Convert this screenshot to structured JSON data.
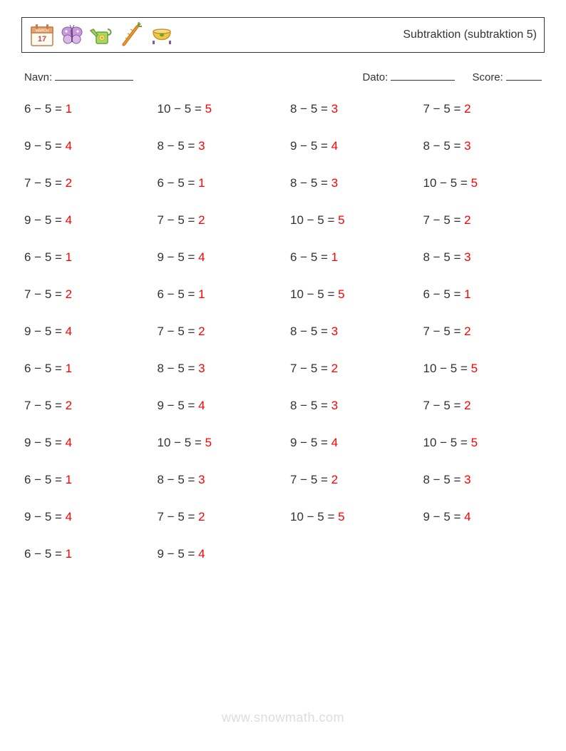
{
  "header": {
    "title": "Subtraktion (subtraktion 5)",
    "icons": [
      "calendar",
      "butterfly",
      "wateringcan",
      "carrot",
      "pot"
    ]
  },
  "meta": {
    "name_label": "Navn:",
    "date_label": "Dato:",
    "score_label": "Score:"
  },
  "colors": {
    "text": "#333333",
    "answer": "#ff0000",
    "border": "#333333",
    "watermark": "#dddddd",
    "background": "#ffffff"
  },
  "layout": {
    "columns": 4,
    "rows": 13,
    "problem_fontsize": 17,
    "title_fontsize": 16,
    "meta_fontsize": 15
  },
  "problems": [
    [
      {
        "a": 6,
        "b": 5,
        "ans": 1
      },
      {
        "a": 10,
        "b": 5,
        "ans": 5
      },
      {
        "a": 8,
        "b": 5,
        "ans": 3
      },
      {
        "a": 7,
        "b": 5,
        "ans": 2
      }
    ],
    [
      {
        "a": 9,
        "b": 5,
        "ans": 4
      },
      {
        "a": 8,
        "b": 5,
        "ans": 3
      },
      {
        "a": 9,
        "b": 5,
        "ans": 4
      },
      {
        "a": 8,
        "b": 5,
        "ans": 3
      }
    ],
    [
      {
        "a": 7,
        "b": 5,
        "ans": 2
      },
      {
        "a": 6,
        "b": 5,
        "ans": 1
      },
      {
        "a": 8,
        "b": 5,
        "ans": 3
      },
      {
        "a": 10,
        "b": 5,
        "ans": 5
      }
    ],
    [
      {
        "a": 9,
        "b": 5,
        "ans": 4
      },
      {
        "a": 7,
        "b": 5,
        "ans": 2
      },
      {
        "a": 10,
        "b": 5,
        "ans": 5
      },
      {
        "a": 7,
        "b": 5,
        "ans": 2
      }
    ],
    [
      {
        "a": 6,
        "b": 5,
        "ans": 1
      },
      {
        "a": 9,
        "b": 5,
        "ans": 4
      },
      {
        "a": 6,
        "b": 5,
        "ans": 1
      },
      {
        "a": 8,
        "b": 5,
        "ans": 3
      }
    ],
    [
      {
        "a": 7,
        "b": 5,
        "ans": 2
      },
      {
        "a": 6,
        "b": 5,
        "ans": 1
      },
      {
        "a": 10,
        "b": 5,
        "ans": 5
      },
      {
        "a": 6,
        "b": 5,
        "ans": 1
      }
    ],
    [
      {
        "a": 9,
        "b": 5,
        "ans": 4
      },
      {
        "a": 7,
        "b": 5,
        "ans": 2
      },
      {
        "a": 8,
        "b": 5,
        "ans": 3
      },
      {
        "a": 7,
        "b": 5,
        "ans": 2
      }
    ],
    [
      {
        "a": 6,
        "b": 5,
        "ans": 1
      },
      {
        "a": 8,
        "b": 5,
        "ans": 3
      },
      {
        "a": 7,
        "b": 5,
        "ans": 2
      },
      {
        "a": 10,
        "b": 5,
        "ans": 5
      }
    ],
    [
      {
        "a": 7,
        "b": 5,
        "ans": 2
      },
      {
        "a": 9,
        "b": 5,
        "ans": 4
      },
      {
        "a": 8,
        "b": 5,
        "ans": 3
      },
      {
        "a": 7,
        "b": 5,
        "ans": 2
      }
    ],
    [
      {
        "a": 9,
        "b": 5,
        "ans": 4
      },
      {
        "a": 10,
        "b": 5,
        "ans": 5
      },
      {
        "a": 9,
        "b": 5,
        "ans": 4
      },
      {
        "a": 10,
        "b": 5,
        "ans": 5
      }
    ],
    [
      {
        "a": 6,
        "b": 5,
        "ans": 1
      },
      {
        "a": 8,
        "b": 5,
        "ans": 3
      },
      {
        "a": 7,
        "b": 5,
        "ans": 2
      },
      {
        "a": 8,
        "b": 5,
        "ans": 3
      }
    ],
    [
      {
        "a": 9,
        "b": 5,
        "ans": 4
      },
      {
        "a": 7,
        "b": 5,
        "ans": 2
      },
      {
        "a": 10,
        "b": 5,
        "ans": 5
      },
      {
        "a": 9,
        "b": 5,
        "ans": 4
      }
    ],
    [
      {
        "a": 6,
        "b": 5,
        "ans": 1
      },
      {
        "a": 9,
        "b": 5,
        "ans": 4
      }
    ]
  ],
  "watermark": "www.snowmath.com"
}
